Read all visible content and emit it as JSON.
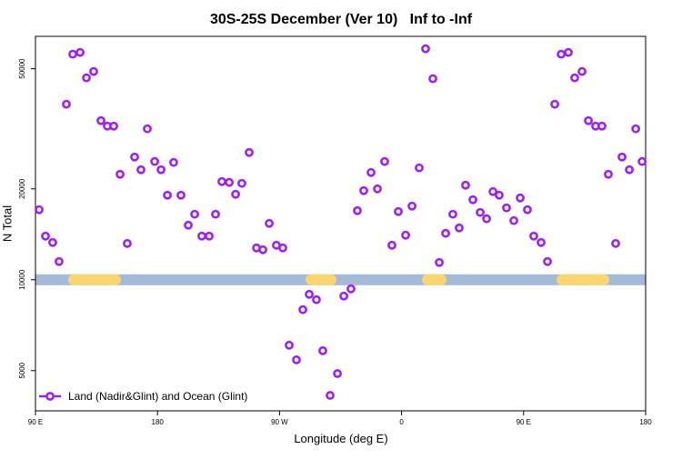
{
  "chart_data": {
    "type": "scatter",
    "title": "30S-25S December (Ver 10)   Inf to -Inf",
    "xlabel": "Longitude (deg E)",
    "ylabel": "N Total",
    "log_y": true,
    "legend": "bottom-left",
    "xlim": [
      90,
      540
    ],
    "ylim": [
      3680,
      64000
    ],
    "xticks": [
      {
        "value": 90,
        "label": "90 E"
      },
      180,
      {
        "value": 270,
        "label": "90 W"
      },
      {
        "value": 360,
        "label": "0"
      },
      {
        "value": 450,
        "label": "90 E"
      },
      {
        "value": 540,
        "label": "180"
      }
    ],
    "yticks": [
      5000,
      10000,
      20000,
      50000
    ],
    "x": [
      92.7,
      97.4,
      102.7,
      107.4,
      112.8,
      117.5,
      122.9,
      127.6,
      132.9,
      138.3,
      143,
      147.7,
      152.4,
      157.7,
      163.1,
      167.8,
      172.5,
      177.9,
      182.6,
      187.3,
      191.9,
      197.3,
      202.7,
      207.4,
      212.7,
      218.1,
      222.8,
      227.5,
      232.9,
      237.6,
      242.2,
      247.6,
      253,
      257.7,
      262.4,
      267.7,
      272.4,
      277.1,
      282.5,
      287.2,
      291.9,
      297.2,
      301.9,
      307.3,
      312.7,
      317.4,
      322.7,
      327.4,
      332.1,
      337.5,
      342.2,
      347.5,
      352.9,
      357.6,
      363,
      367.7,
      373,
      377.7,
      383.1,
      387.8,
      392.5,
      397.8,
      402.5,
      407.2,
      412.6,
      418,
      422.7,
      427.4,
      432,
      437.4,
      442.8,
      447.5,
      452.8,
      457.5,
      462.9,
      467.6,
      473,
      477.7,
      483,
      487.7,
      493.1,
      497.8,
      503.1,
      507.8,
      512.5,
      517.9,
      522.6,
      528,
      532.7,
      537.4
    ],
    "series": [
      {
        "name": "Land (Nadir&Glint) and Ocean (Glint)",
        "color": "#a020f0",
        "values": [
          17060,
          13950,
          13290,
          11490,
          38140,
          55850,
          56620,
          46650,
          48950,
          33650,
          32280,
          32280,
          22350,
          13190,
          25500,
          23140,
          31620,
          24640,
          23140,
          19060,
          24470,
          19060,
          15160,
          16480,
          13950,
          13950,
          16480,
          21150,
          21010,
          19190,
          20860,
          26400,
          12750,
          12570,
          15370,
          13010,
          12750,
          6070,
          5430,
          7960,
          8950,
          8590,
          5820,
          4140,
          4890,
          8830,
          9330,
          16940,
          19730,
          22660,
          20000,
          24640,
          13010,
          16820,
          14050,
          17540,
          23470,
          58210,
          46330,
          11410,
          14250,
          16480,
          14850,
          20570,
          18410,
          16710,
          15920,
          19590,
          19060,
          17300,
          15700,
          18660,
          17060,
          13950,
          13290,
          11490,
          38140,
          55850,
          56620,
          46650,
          48950,
          33650,
          32280,
          32280,
          22350,
          13190,
          25500,
          23140,
          31620,
          24640
        ]
      }
    ],
    "surface_band": {
      "y": 10000,
      "ocean_color": "#a3bad8",
      "land_color": "#fbd66e",
      "land": [
        [
          114.1,
          153
        ],
        [
          289.2,
          312
        ],
        [
          375.1,
          393.2
        ],
        [
          474.3,
          513.2
        ]
      ]
    }
  }
}
